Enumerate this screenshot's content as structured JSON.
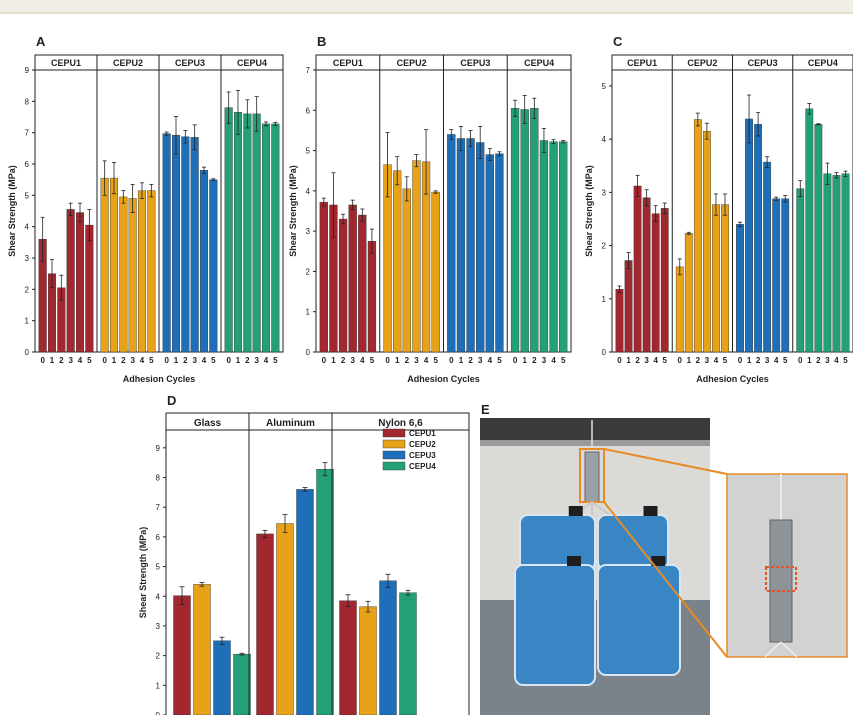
{
  "colors": {
    "CEPU1": "#a3272f",
    "CEPU2": "#e7a21a",
    "CEPU3": "#1f6fb8",
    "CEPU4": "#23a078",
    "frame": "#222222"
  },
  "chart_data": [
    {
      "panel": "A",
      "type": "bar",
      "ylabel": "Shear Strength (MPa)",
      "xlabel": "Adhesion Cycles",
      "ylim": [
        0,
        9
      ],
      "yticks": [
        0,
        1,
        2,
        3,
        4,
        5,
        6,
        7,
        8,
        9
      ],
      "groups": [
        "CEPU1",
        "CEPU2",
        "CEPU3",
        "CEPU4"
      ],
      "categories": [
        "0",
        "1",
        "2",
        "3",
        "4",
        "5"
      ],
      "series": [
        {
          "name": "CEPU1",
          "values": [
            3.6,
            2.5,
            2.05,
            4.55,
            4.45,
            4.05
          ],
          "errors": [
            0.7,
            0.45,
            0.4,
            0.2,
            0.3,
            0.5
          ]
        },
        {
          "name": "CEPU2",
          "values": [
            5.55,
            5.55,
            4.95,
            4.9,
            5.15,
            5.15
          ],
          "errors": [
            0.55,
            0.5,
            0.2,
            0.45,
            0.25,
            0.2
          ]
        },
        {
          "name": "CEPU3",
          "values": [
            6.97,
            6.92,
            6.87,
            6.85,
            5.8,
            5.5
          ],
          "errors": [
            0.05,
            0.6,
            0.2,
            0.4,
            0.1,
            0.03
          ]
        },
        {
          "name": "CEPU4",
          "values": [
            7.8,
            7.65,
            7.6,
            7.6,
            7.28,
            7.28
          ],
          "errors": [
            0.5,
            0.7,
            0.45,
            0.55,
            0.06,
            0.05
          ]
        }
      ]
    },
    {
      "panel": "B",
      "type": "bar",
      "ylabel": "Shear Strength (MPa)",
      "xlabel": "Adhesion Cycles",
      "ylim": [
        0,
        7
      ],
      "yticks": [
        0,
        1,
        2,
        3,
        4,
        5,
        6,
        7
      ],
      "groups": [
        "CEPU1",
        "CEPU2",
        "CEPU3",
        "CEPU4"
      ],
      "categories": [
        "0",
        "1",
        "2",
        "3",
        "4",
        "5"
      ],
      "series": [
        {
          "name": "CEPU1",
          "values": [
            3.72,
            3.65,
            3.3,
            3.65,
            3.4,
            2.75
          ],
          "errors": [
            0.1,
            0.8,
            0.12,
            0.12,
            0.15,
            0.3
          ]
        },
        {
          "name": "CEPU2",
          "values": [
            4.65,
            4.5,
            4.05,
            4.75,
            4.72,
            3.97
          ],
          "errors": [
            0.8,
            0.35,
            0.3,
            0.15,
            0.8,
            0.03
          ]
        },
        {
          "name": "CEPU3",
          "values": [
            5.4,
            5.3,
            5.3,
            5.2,
            4.9,
            4.92
          ],
          "errors": [
            0.12,
            0.3,
            0.2,
            0.4,
            0.15,
            0.05
          ]
        },
        {
          "name": "CEPU4",
          "values": [
            6.05,
            6.02,
            6.05,
            5.25,
            5.22,
            5.22
          ],
          "errors": [
            0.2,
            0.35,
            0.25,
            0.3,
            0.05,
            0.03
          ]
        }
      ]
    },
    {
      "panel": "C",
      "type": "bar",
      "ylabel": "Shear Strength (MPa)",
      "xlabel": "Adhesion Cycles",
      "ylim": [
        0,
        5.3
      ],
      "yticks": [
        0,
        1,
        2,
        3,
        4,
        5
      ],
      "groups": [
        "CEPU1",
        "CEPU2",
        "CEPU3",
        "CEPU4"
      ],
      "categories": [
        "0",
        "1",
        "2",
        "3",
        "4",
        "5"
      ],
      "series": [
        {
          "name": "CEPU1",
          "values": [
            1.18,
            1.72,
            3.12,
            2.9,
            2.6,
            2.7
          ],
          "errors": [
            0.06,
            0.15,
            0.2,
            0.15,
            0.15,
            0.1
          ]
        },
        {
          "name": "CEPU2",
          "values": [
            1.6,
            2.23,
            4.37,
            4.15,
            2.77,
            2.77
          ],
          "errors": [
            0.15,
            0.02,
            0.12,
            0.15,
            0.2,
            0.2
          ]
        },
        {
          "name": "CEPU3",
          "values": [
            2.4,
            4.38,
            4.28,
            3.57,
            2.88,
            2.88
          ],
          "errors": [
            0.04,
            0.45,
            0.22,
            0.1,
            0.03,
            0.06
          ]
        },
        {
          "name": "CEPU4",
          "values": [
            3.07,
            4.57,
            4.28,
            3.35,
            3.32,
            3.35
          ],
          "errors": [
            0.15,
            0.1,
            0.01,
            0.2,
            0.05,
            0.05
          ]
        }
      ]
    },
    {
      "panel": "D",
      "type": "bar",
      "ylabel": "Shear Strength (MPa)",
      "ylim": [
        0,
        9.6
      ],
      "yticks": [
        0,
        1,
        2,
        3,
        4,
        5,
        6,
        7,
        8,
        9
      ],
      "groups": [
        "Glass",
        "Aluminum",
        "Nylon 6,6"
      ],
      "legend_position": "top-right",
      "series": [
        {
          "name": "CEPU1",
          "values": [
            4.02,
            6.1,
            3.85
          ],
          "errors": [
            0.3,
            0.12,
            0.2
          ]
        },
        {
          "name": "CEPU2",
          "values": [
            4.4,
            6.45,
            3.65
          ],
          "errors": [
            0.06,
            0.3,
            0.18
          ]
        },
        {
          "name": "CEPU3",
          "values": [
            2.5,
            7.6,
            4.52
          ],
          "errors": [
            0.12,
            0.06,
            0.22
          ]
        },
        {
          "name": "CEPU4",
          "values": [
            2.05,
            8.28,
            4.12
          ],
          "errors": [
            0.03,
            0.22,
            0.08
          ]
        }
      ]
    }
  ],
  "photo": {
    "panel": "E",
    "description_icons": [
      "weights-hanging-from-lap-joint",
      "zoomed-lap-joint-inset"
    ]
  }
}
